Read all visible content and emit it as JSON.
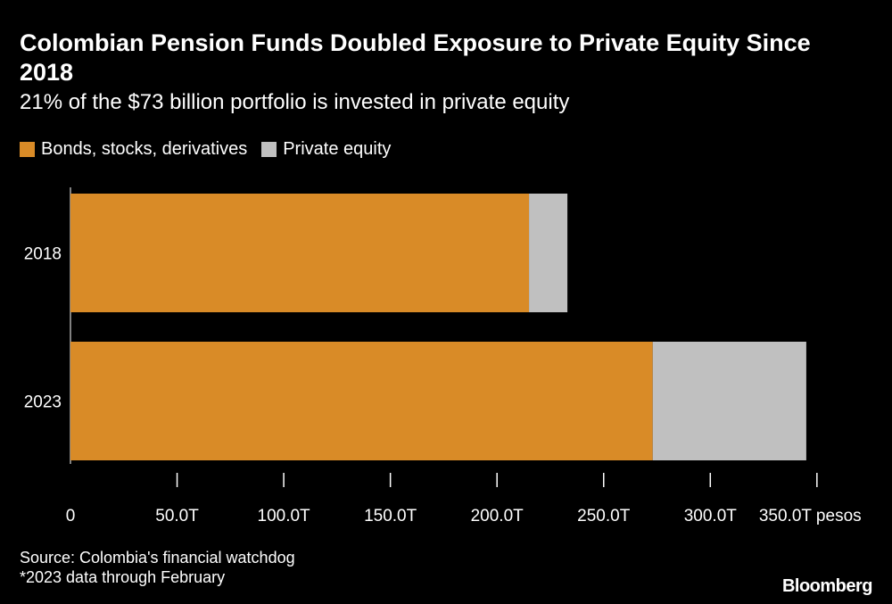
{
  "chart_data": {
    "type": "bar",
    "orientation": "horizontal",
    "stacked": true,
    "title": "Colombian Pension Funds Doubled Exposure to Private Equity Since 2018",
    "subtitle": "21% of the $73 billion portfolio is invested in private equity",
    "categories": [
      "2018",
      "2023"
    ],
    "series": [
      {
        "name": "Bonds, stocks, derivatives",
        "color": "#d98b27",
        "values": [
          215,
          273
        ]
      },
      {
        "name": "Private equity",
        "color": "#c0c0c0",
        "values": [
          18,
          72
        ]
      }
    ],
    "x_ticks": [
      0,
      50,
      100,
      150,
      200,
      250,
      300,
      350
    ],
    "x_tick_labels": [
      "0",
      "50.0T",
      "100.0T",
      "150.0T",
      "200.0T",
      "250.0T",
      "300.0T",
      "350.0T pesos"
    ],
    "xlim": [
      0,
      350
    ],
    "grid": false,
    "legend_position": "top-left"
  },
  "footer": {
    "source": "Source: Colombia's financial watchdog",
    "note": "*2023 data through February"
  },
  "brand": "Bloomberg"
}
